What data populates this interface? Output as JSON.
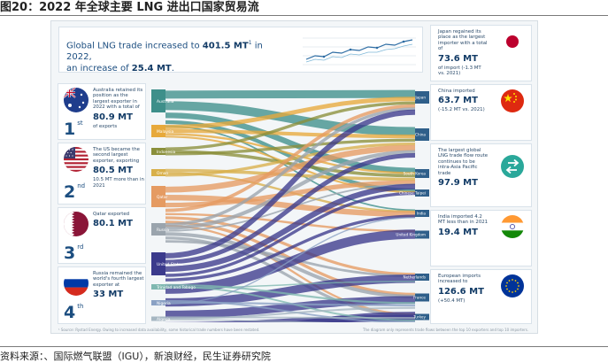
{
  "page": {
    "title": "图20：2022 年全球主要 LNG 进出口国家贸易流",
    "source": "资料来源：、国际燃气联盟（IGU），新浪财经，民生证券研究院"
  },
  "header": {
    "line1_pre": "Global LNG trade increased to ",
    "line1_value": "401.5 MT",
    "line1_sup": "1",
    "line1_post": " in 2022,",
    "line2_pre": "an increase of ",
    "line2_value": "25.4 MT",
    "line2_post": "."
  },
  "exporters": [
    {
      "rank": "1",
      "suffix": "st",
      "pre": "Australia retained its position as the largest exporter in 2022 with a total of",
      "value": "80.9 MT",
      "post": "of exports"
    },
    {
      "rank": "2",
      "suffix": "nd",
      "pre": "The US became the second largest exporter, exporting",
      "value": "80.5 MT",
      "post": "10.5 MT more than in 2021"
    },
    {
      "rank": "3",
      "suffix": "rd",
      "pre": "Qatar exported",
      "value": "80.1 MT",
      "post": ""
    },
    {
      "rank": "4",
      "suffix": "th",
      "pre": "Russia remained the world's fourth largest exporter at",
      "value": "33 MT",
      "post": ""
    }
  ],
  "importers": [
    {
      "pre": "Japan regained its place as the largest importer with a total of",
      "value": "73.6 MT",
      "post": "of import (-1.3 MT vs. 2021)"
    },
    {
      "pre": "China imported",
      "value": "63.7 MT",
      "post": "(-15.2 MT vs. 2021)"
    },
    {
      "pre": "The largest global LNG trade flow route continues to be intra-Asia Pacific trade",
      "value": "97.9 MT",
      "post": ""
    },
    {
      "pre": "India imported 4.2 MT less than in 2021",
      "value": "19.4 MT",
      "post": ""
    },
    {
      "pre": "European imports increased to",
      "value": "126.6 MT",
      "post": "(+50.4 MT)"
    }
  ],
  "sankey": {
    "sources": [
      "Australia",
      "Malaysia",
      "Indonesia",
      "Oman",
      "Qatar",
      "Russia",
      "United States",
      "Trinidad and Tobago",
      "Nigeria",
      "Algeria"
    ],
    "targets": [
      "Japan",
      "China",
      "South Korea",
      "Chinese Taipei",
      "India",
      "United Kingdom",
      "Netherlands",
      "France",
      "Spain",
      "Turkey"
    ]
  },
  "notes": {
    "left": "¹ Source: Rystad Energy. Owing to increased data availability, some historical trade numbers have been restated.",
    "right": "The diagram only represents trade flows between the top 10 exporters and top 10 importers."
  },
  "colors": {
    "Australia": "#3e8f8a",
    "Malaysia": "#e7a93b",
    "Indonesia": "#8a8f3a",
    "Oman": "#d8b04a",
    "Qatar": "#e59b62",
    "Russia": "#9aa4ad",
    "United States": "#3b3a8c",
    "Trinidad and Tobago": "#7fb8b0",
    "Nigeria": "#8aa1c4",
    "Algeria": "#a6b7c2"
  }
}
